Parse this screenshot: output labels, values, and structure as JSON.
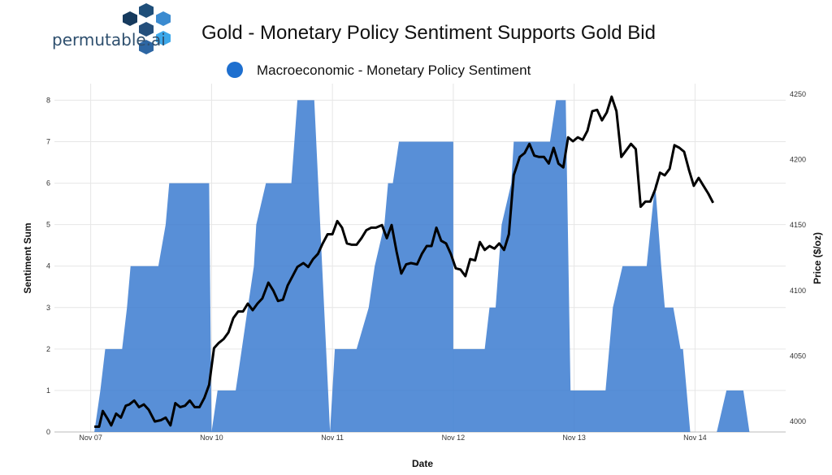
{
  "logo": {
    "text": "permutable.ai"
  },
  "title": "Gold - Monetary Policy Sentiment Supports Gold Bid",
  "colors": {
    "sentiment": "#3b7bd0",
    "legend_dot": "#1e6fcf",
    "price": "#000000",
    "grid": "#e6e6e6"
  },
  "chart_data": {
    "type": "area",
    "title": "Gold - Monetary Policy Sentiment Supports Gold Bid",
    "xlabel": "Date",
    "ylabel": "Sentiment Sum",
    "y2label": "Price ($/oz)",
    "x_ticks": [
      {
        "x": 0,
        "label": "Nov 07"
      },
      {
        "x": 1,
        "label": "Nov 10"
      },
      {
        "x": 2,
        "label": "Nov 11"
      },
      {
        "x": 3,
        "label": "Nov 12"
      },
      {
        "x": 4,
        "label": "Nov 13"
      },
      {
        "x": 5,
        "label": "Nov 14"
      }
    ],
    "xlim": [
      -0.3,
      5.75
    ],
    "ylim": [
      0,
      8.4
    ],
    "y_ticks": [
      0,
      1,
      2,
      3,
      4,
      5,
      6,
      7,
      8
    ],
    "y2lim": [
      3992,
      4258
    ],
    "y2_ticks": [
      4000,
      4050,
      4100,
      4150,
      4200,
      4250
    ],
    "legend_position": "top",
    "series": [
      {
        "name": "Macroeconomic - Monetary Policy Sentiment",
        "type": "area",
        "axis": "left",
        "points": [
          [
            0.03,
            0
          ],
          [
            0.08,
            1
          ],
          [
            0.12,
            2
          ],
          [
            0.26,
            2
          ],
          [
            0.3,
            3
          ],
          [
            0.33,
            4
          ],
          [
            0.56,
            4
          ],
          [
            0.62,
            5
          ],
          [
            0.65,
            6
          ],
          [
            0.98,
            6
          ],
          [
            1.0,
            0
          ],
          [
            1.05,
            1
          ],
          [
            1.2,
            1
          ],
          [
            1.25,
            2
          ],
          [
            1.3,
            3
          ],
          [
            1.35,
            4
          ],
          [
            1.37,
            5
          ],
          [
            1.45,
            6
          ],
          [
            1.66,
            6
          ],
          [
            1.71,
            8
          ],
          [
            1.85,
            8
          ],
          [
            1.98,
            0
          ],
          [
            2.02,
            2
          ],
          [
            2.2,
            2
          ],
          [
            2.3,
            3
          ],
          [
            2.35,
            4
          ],
          [
            2.43,
            5
          ],
          [
            2.46,
            6
          ],
          [
            2.5,
            6
          ],
          [
            2.55,
            7
          ],
          [
            3.0,
            7
          ],
          [
            3.0,
            2
          ],
          [
            3.26,
            2
          ],
          [
            3.3,
            3
          ],
          [
            3.35,
            3
          ],
          [
            3.4,
            5
          ],
          [
            3.48,
            6
          ],
          [
            3.5,
            7
          ],
          [
            3.8,
            7
          ],
          [
            3.85,
            8
          ],
          [
            3.93,
            8
          ],
          [
            3.97,
            1
          ],
          [
            4.26,
            1
          ],
          [
            4.32,
            3
          ],
          [
            4.4,
            4
          ],
          [
            4.6,
            4
          ],
          [
            4.67,
            6
          ],
          [
            4.72,
            4
          ],
          [
            4.75,
            3
          ],
          [
            4.82,
            3
          ],
          [
            4.88,
            2
          ],
          [
            4.9,
            2
          ],
          [
            4.96,
            0
          ],
          [
            5.18,
            0
          ],
          [
            5.26,
            1
          ],
          [
            5.4,
            1
          ],
          [
            5.45,
            0
          ]
        ]
      },
      {
        "name": "Price",
        "type": "line",
        "axis": "right",
        "points": [
          [
            0.03,
            3996
          ],
          [
            0.07,
            3996
          ],
          [
            0.1,
            4008
          ],
          [
            0.14,
            4002
          ],
          [
            0.17,
            3997
          ],
          [
            0.21,
            4006
          ],
          [
            0.25,
            4003
          ],
          [
            0.29,
            4012
          ],
          [
            0.32,
            4013
          ],
          [
            0.36,
            4016
          ],
          [
            0.4,
            4011
          ],
          [
            0.44,
            4013
          ],
          [
            0.48,
            4009
          ],
          [
            0.53,
            4000
          ],
          [
            0.58,
            4001
          ],
          [
            0.62,
            4003
          ],
          [
            0.66,
            3997
          ],
          [
            0.7,
            4014
          ],
          [
            0.74,
            4011
          ],
          [
            0.78,
            4012
          ],
          [
            0.82,
            4016
          ],
          [
            0.86,
            4011
          ],
          [
            0.9,
            4011
          ],
          [
            0.94,
            4018
          ],
          [
            0.98,
            4028
          ],
          [
            1.02,
            4056
          ],
          [
            1.06,
            4060
          ],
          [
            1.1,
            4063
          ],
          [
            1.14,
            4068
          ],
          [
            1.18,
            4079
          ],
          [
            1.22,
            4084
          ],
          [
            1.26,
            4084
          ],
          [
            1.3,
            4090
          ],
          [
            1.34,
            4085
          ],
          [
            1.38,
            4090
          ],
          [
            1.42,
            4094
          ],
          [
            1.47,
            4106
          ],
          [
            1.51,
            4100
          ],
          [
            1.55,
            4092
          ],
          [
            1.59,
            4093
          ],
          [
            1.63,
            4104
          ],
          [
            1.67,
            4111
          ],
          [
            1.71,
            4118
          ],
          [
            1.76,
            4121
          ],
          [
            1.8,
            4118
          ],
          [
            1.84,
            4124
          ],
          [
            1.88,
            4128
          ],
          [
            1.92,
            4136
          ],
          [
            1.96,
            4143
          ],
          [
            2.0,
            4143
          ],
          [
            2.04,
            4153
          ],
          [
            2.08,
            4148
          ],
          [
            2.12,
            4136
          ],
          [
            2.16,
            4135
          ],
          [
            2.2,
            4135
          ],
          [
            2.24,
            4140
          ],
          [
            2.28,
            4146
          ],
          [
            2.32,
            4148
          ],
          [
            2.36,
            4148
          ],
          [
            2.41,
            4150
          ],
          [
            2.45,
            4140
          ],
          [
            2.49,
            4150
          ],
          [
            2.53,
            4130
          ],
          [
            2.57,
            4113
          ],
          [
            2.61,
            4120
          ],
          [
            2.65,
            4121
          ],
          [
            2.7,
            4120
          ],
          [
            2.74,
            4128
          ],
          [
            2.78,
            4134
          ],
          [
            2.82,
            4134
          ],
          [
            2.86,
            4148
          ],
          [
            2.9,
            4138
          ],
          [
            2.94,
            4136
          ],
          [
            2.98,
            4128
          ],
          [
            3.02,
            4117
          ],
          [
            3.06,
            4116
          ],
          [
            3.1,
            4111
          ],
          [
            3.14,
            4124
          ],
          [
            3.18,
            4123
          ],
          [
            3.22,
            4137
          ],
          [
            3.26,
            4131
          ],
          [
            3.3,
            4134
          ],
          [
            3.34,
            4132
          ],
          [
            3.38,
            4136
          ],
          [
            3.42,
            4131
          ],
          [
            3.46,
            4143
          ],
          [
            3.5,
            4188
          ],
          [
            3.55,
            4202
          ],
          [
            3.59,
            4205
          ],
          [
            3.63,
            4212
          ],
          [
            3.67,
            4203
          ],
          [
            3.71,
            4202
          ],
          [
            3.75,
            4202
          ],
          [
            3.79,
            4197
          ],
          [
            3.83,
            4209
          ],
          [
            3.87,
            4197
          ],
          [
            3.91,
            4194
          ],
          [
            3.95,
            4217
          ],
          [
            3.99,
            4214
          ],
          [
            4.03,
            4217
          ],
          [
            4.07,
            4215
          ],
          [
            4.11,
            4222
          ],
          [
            4.15,
            4237
          ],
          [
            4.19,
            4238
          ],
          [
            4.23,
            4230
          ],
          [
            4.27,
            4236
          ],
          [
            4.31,
            4248
          ],
          [
            4.35,
            4237
          ],
          [
            4.39,
            4202
          ],
          [
            4.43,
            4207
          ],
          [
            4.47,
            4212
          ],
          [
            4.51,
            4208
          ],
          [
            4.55,
            4164
          ],
          [
            4.59,
            4168
          ],
          [
            4.63,
            4168
          ],
          [
            4.67,
            4177
          ],
          [
            4.71,
            4190
          ],
          [
            4.75,
            4188
          ],
          [
            4.79,
            4193
          ],
          [
            4.83,
            4211
          ],
          [
            4.87,
            4209
          ],
          [
            4.91,
            4206
          ],
          [
            4.95,
            4192
          ],
          [
            4.99,
            4180
          ],
          [
            5.03,
            4186
          ],
          [
            5.07,
            4180
          ],
          [
            5.11,
            4174
          ],
          [
            5.15,
            4167
          ]
        ]
      }
    ]
  }
}
